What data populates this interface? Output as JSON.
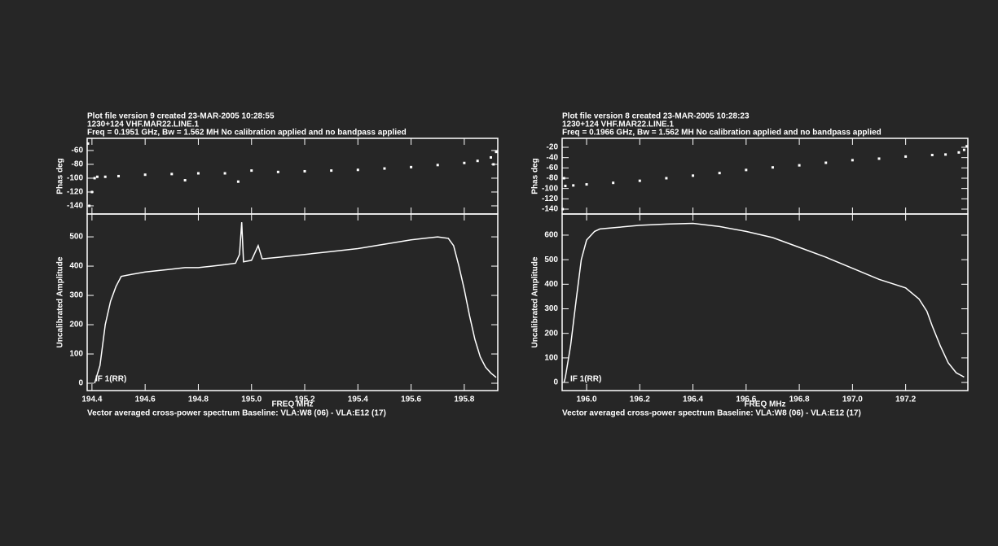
{
  "chart_data": [
    {
      "type": "scatter",
      "title": [
        "Plot file version 9  created 23-MAR-2005 10:28:55",
        "1230+124    VHF.MAR22.LINE.1",
        "Freq = 0.1951 GHz, Bw = 1.562 MH    No calibration applied and no bandpass applied"
      ],
      "y_label": "Phas deg",
      "x": [
        194.385,
        194.39,
        194.4,
        194.41,
        194.42,
        194.45,
        194.5,
        194.6,
        194.7,
        194.75,
        194.8,
        194.9,
        194.95,
        195.0,
        195.1,
        195.2,
        195.3,
        195.4,
        195.5,
        195.6,
        195.7,
        195.8,
        195.85,
        195.9,
        195.91,
        195.92
      ],
      "series": [
        {
          "color": "#ffffff",
          "values": [
            -50,
            -140,
            -120,
            -100,
            -98,
            -98,
            -97,
            -95,
            -94,
            -103,
            -93,
            -93,
            -105,
            -89,
            -91,
            -90,
            -89,
            -88,
            -86,
            -84,
            -81,
            -78,
            -75,
            -70,
            -80,
            -62
          ]
        }
      ],
      "xlim": [
        194.382,
        195.926
      ],
      "ylim": [
        -151.8,
        -42.4
      ],
      "yticks": [
        -60,
        -80,
        -100,
        -120,
        -140
      ]
    },
    {
      "type": "line",
      "y_label": "Uncalibrated Amplitude",
      "x_label": "FREQ   MHz",
      "annotation": "IF 1(RR)",
      "caption": "Vector averaged cross-power spectrum    Baseline: VLA:W8 (06) - VLA:E12 (17)",
      "x": [
        194.41,
        194.43,
        194.45,
        194.47,
        194.49,
        194.51,
        194.55,
        194.6,
        194.65,
        194.7,
        194.75,
        194.8,
        194.85,
        194.9,
        194.94,
        194.955,
        194.963,
        194.97,
        195.0,
        195.025,
        195.04,
        195.1,
        195.2,
        195.3,
        195.4,
        195.5,
        195.6,
        195.65,
        195.7,
        195.74,
        195.76,
        195.78,
        195.8,
        195.82,
        195.84,
        195.86,
        195.88,
        195.9,
        195.92
      ],
      "series": [
        {
          "color": "#ffffff",
          "values": [
            0,
            60,
            200,
            280,
            330,
            365,
            372,
            380,
            385,
            390,
            395,
            395,
            400,
            405,
            410,
            440,
            550,
            415,
            420,
            470,
            425,
            430,
            440,
            450,
            460,
            475,
            490,
            495,
            500,
            495,
            470,
            400,
            320,
            230,
            150,
            90,
            55,
            35,
            20
          ]
        }
      ],
      "xlim": [
        194.382,
        195.926
      ],
      "ylim": [
        -25,
        578
      ],
      "xticks": [
        194.4,
        194.6,
        194.8,
        {
          "value": 195.0,
          "label": "195.0"
        },
        195.2,
        195.4,
        195.6,
        195.8
      ],
      "yticks": [
        0,
        100,
        200,
        300,
        400,
        500
      ]
    },
    {
      "type": "scatter",
      "title": [
        "Plot file version 8  created 23-MAR-2005 10:28:23",
        "1230+124    VHF.MAR22.LINE.1",
        "Freq = 0.1966 GHz, Bw = 1.562 MH    No calibration applied and no bandpass applied"
      ],
      "y_label": "Phas deg",
      "x": [
        195.91,
        195.915,
        195.92,
        195.95,
        196.0,
        196.1,
        196.2,
        196.3,
        196.4,
        196.5,
        196.6,
        196.7,
        196.8,
        196.9,
        197.0,
        197.1,
        197.2,
        197.3,
        197.35,
        197.4,
        197.42,
        197.43
      ],
      "series": [
        {
          "color": "#ffffff",
          "values": [
            -140,
            -80,
            -95,
            -94,
            -92,
            -89,
            -85,
            -80,
            -75,
            -70,
            -64,
            -59,
            -55,
            -50,
            -45,
            -42,
            -38,
            -35,
            -34,
            -30,
            -25,
            -18
          ]
        }
      ],
      "xlim": [
        195.908,
        197.434
      ],
      "ylim": [
        -149.5,
        -2.6
      ],
      "yticks": [
        -20,
        -40,
        -60,
        -80,
        -100,
        -120,
        -140
      ]
    },
    {
      "type": "line",
      "y_label": "Uncalibrated Amplitude",
      "x_label": "FREQ   MHz",
      "annotation": "IF 1(RR)",
      "caption": "Vector averaged cross-power spectrum    Baseline: VLA:W8 (06) - VLA:E12 (17)",
      "x": [
        195.915,
        195.92,
        195.94,
        195.96,
        195.98,
        196.0,
        196.03,
        196.05,
        196.1,
        196.2,
        196.3,
        196.4,
        196.5,
        196.6,
        196.7,
        196.8,
        196.9,
        197.0,
        197.1,
        197.2,
        197.25,
        197.28,
        197.3,
        197.33,
        197.36,
        197.39,
        197.42
      ],
      "series": [
        {
          "color": "#ffffff",
          "values": [
            0,
            20,
            150,
            330,
            500,
            580,
            615,
            625,
            630,
            640,
            645,
            648,
            635,
            615,
            590,
            550,
            510,
            465,
            420,
            385,
            340,
            290,
            230,
            150,
            80,
            40,
            22
          ]
        }
      ],
      "xlim": [
        195.908,
        197.434
      ],
      "ylim": [
        -33,
        686
      ],
      "xticks": [
        {
          "value": 196.0,
          "label": "196.0"
        },
        196.2,
        196.4,
        196.6,
        196.8,
        {
          "value": 197.0,
          "label": "197.0"
        },
        197.2
      ],
      "yticks": [
        0,
        100,
        200,
        300,
        400,
        500,
        600
      ]
    }
  ]
}
